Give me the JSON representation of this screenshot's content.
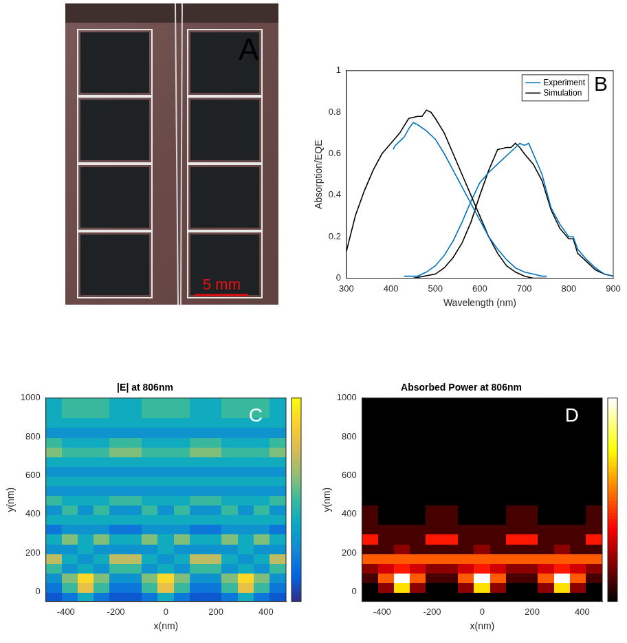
{
  "photo": {
    "letter": "A",
    "scale_bar": "5 mm"
  },
  "chart_data": [
    {
      "type": "line",
      "letter": "B",
      "xlabel": "Wavelength (nm)",
      "ylabel": "Absorption/EQE",
      "xlim": [
        300,
        900
      ],
      "xticks": [
        300,
        400,
        500,
        600,
        700,
        800,
        900
      ],
      "ylim": [
        0,
        1
      ],
      "yticks": [
        0,
        0.2,
        0.4,
        0.6,
        0.8,
        1
      ],
      "legend": "upper right",
      "grid": false,
      "series": [
        {
          "name": "Experiment",
          "color": "#0072bd",
          "x": [
            405,
            410,
            420,
            430,
            440,
            450,
            460,
            480,
            500,
            520,
            540,
            560,
            580,
            600,
            620,
            640,
            660,
            680,
            700,
            720,
            740,
            750
          ],
          "values": [
            0.62,
            0.64,
            0.66,
            0.68,
            0.72,
            0.75,
            0.74,
            0.71,
            0.67,
            0.6,
            0.52,
            0.44,
            0.36,
            0.28,
            0.2,
            0.14,
            0.09,
            0.05,
            0.03,
            0.02,
            0.01,
            0.01
          ]
        },
        {
          "name": "Simulation",
          "color": "#000000",
          "x": [
            300,
            320,
            340,
            360,
            380,
            400,
            420,
            440,
            460,
            470,
            480,
            490,
            500,
            520,
            540,
            560,
            580,
            600,
            620,
            640,
            660,
            680,
            700,
            720,
            750
          ],
          "values": [
            0.13,
            0.3,
            0.42,
            0.52,
            0.6,
            0.65,
            0.7,
            0.77,
            0.78,
            0.78,
            0.81,
            0.8,
            0.77,
            0.7,
            0.6,
            0.5,
            0.4,
            0.3,
            0.2,
            0.12,
            0.06,
            0.03,
            0.01,
            0,
            0
          ]
        },
        {
          "name": "Experiment",
          "color": "#0072bd",
          "x": [
            430,
            460,
            480,
            500,
            520,
            540,
            560,
            580,
            600,
            620,
            640,
            660,
            680,
            690,
            700,
            710,
            720,
            740,
            760,
            780,
            800,
            810,
            820,
            840,
            860,
            880,
            900
          ],
          "values": [
            0.01,
            0.01,
            0.03,
            0.06,
            0.11,
            0.18,
            0.27,
            0.37,
            0.46,
            0.51,
            0.55,
            0.59,
            0.63,
            0.65,
            0.64,
            0.65,
            0.6,
            0.5,
            0.34,
            0.26,
            0.2,
            0.2,
            0.14,
            0.09,
            0.05,
            0.02,
            0.01
          ]
        },
        {
          "name": "Simulation",
          "color": "#000000",
          "x": [
            450,
            500,
            520,
            540,
            560,
            580,
            600,
            620,
            640,
            660,
            670,
            680,
            690,
            700,
            720,
            740,
            760,
            780,
            800,
            810,
            820,
            840,
            860,
            880,
            900
          ],
          "values": [
            0,
            0.02,
            0.05,
            0.1,
            0.17,
            0.27,
            0.4,
            0.52,
            0.62,
            0.63,
            0.63,
            0.65,
            0.63,
            0.6,
            0.55,
            0.47,
            0.33,
            0.24,
            0.19,
            0.19,
            0.12,
            0.08,
            0.04,
            0.02,
            0.01
          ]
        }
      ]
    },
    {
      "type": "heatmap",
      "letter": "C",
      "title": "|E| at 806nm",
      "xlabel": "x(nm)",
      "ylabel": "y(nm)",
      "xlim": [
        -480,
        480
      ],
      "xticks": [
        -400,
        -200,
        0,
        200,
        400
      ],
      "ylim": [
        -50,
        1000
      ],
      "yticks": [
        0,
        200,
        400,
        600,
        800,
        1000
      ],
      "color": "parula",
      "zlim": [
        0,
        10
      ],
      "x": [
        -448,
        -384,
        -320,
        -256,
        -192,
        -128,
        -64,
        0,
        64,
        128,
        192,
        256,
        320,
        384,
        448
      ],
      "y": [
        -25,
        25,
        75,
        125,
        175,
        225,
        275,
        325,
        375,
        425,
        475,
        525,
        575,
        625,
        675,
        725,
        775,
        825,
        875,
        925,
        975
      ],
      "z": [
        [
          1,
          2,
          4,
          2,
          1,
          1,
          2,
          4,
          2,
          1,
          1,
          2,
          4,
          2,
          1
        ],
        [
          2,
          5,
          8,
          5,
          2,
          2,
          5,
          8,
          5,
          2,
          2,
          5,
          8,
          5,
          2
        ],
        [
          3,
          6,
          9,
          6,
          3,
          3,
          6,
          9,
          6,
          3,
          3,
          6,
          9,
          6,
          3
        ],
        [
          5,
          3,
          4,
          3,
          5,
          5,
          3,
          4,
          3,
          5,
          5,
          3,
          4,
          3,
          5
        ],
        [
          7,
          4,
          3,
          4,
          7,
          7,
          4,
          3,
          4,
          7,
          7,
          4,
          3,
          4,
          7
        ],
        [
          3,
          3,
          4,
          3,
          3,
          3,
          3,
          4,
          3,
          3,
          3,
          3,
          4,
          3,
          3
        ],
        [
          4,
          6,
          4,
          6,
          4,
          4,
          6,
          4,
          6,
          4,
          4,
          6,
          4,
          6,
          4
        ],
        [
          2,
          3,
          3,
          3,
          2,
          2,
          3,
          3,
          3,
          2,
          2,
          3,
          3,
          3,
          2
        ],
        [
          4,
          4,
          4,
          4,
          4,
          4,
          4,
          4,
          4,
          4,
          4,
          4,
          4,
          4,
          4
        ],
        [
          3,
          5,
          3,
          5,
          3,
          3,
          5,
          3,
          5,
          3,
          3,
          5,
          3,
          5,
          3
        ],
        [
          5,
          4,
          4,
          4,
          5,
          5,
          4,
          4,
          4,
          5,
          5,
          4,
          4,
          4,
          5
        ],
        [
          3,
          3,
          3,
          3,
          3,
          3,
          3,
          3,
          3,
          3,
          3,
          3,
          3,
          3,
          3
        ],
        [
          4,
          4,
          4,
          4,
          4,
          4,
          4,
          4,
          4,
          4,
          4,
          4,
          4,
          4,
          4
        ],
        [
          3,
          3,
          3,
          3,
          3,
          3,
          3,
          3,
          3,
          3,
          3,
          3,
          3,
          3,
          3
        ],
        [
          4,
          4,
          4,
          4,
          4,
          4,
          4,
          4,
          4,
          4,
          4,
          4,
          4,
          4,
          4
        ],
        [
          6,
          5,
          5,
          5,
          6,
          6,
          5,
          5,
          5,
          6,
          6,
          5,
          5,
          5,
          6
        ],
        [
          5,
          4,
          4,
          4,
          5,
          5,
          4,
          4,
          4,
          5,
          5,
          4,
          4,
          4,
          5
        ],
        [
          3,
          3,
          3,
          3,
          3,
          3,
          3,
          3,
          3,
          3,
          3,
          3,
          3,
          3,
          3
        ],
        [
          4,
          4,
          4,
          4,
          4,
          4,
          4,
          4,
          4,
          4,
          4,
          4,
          4,
          4,
          4
        ],
        [
          4,
          5,
          5,
          5,
          4,
          4,
          5,
          5,
          5,
          4,
          4,
          5,
          5,
          5,
          4
        ],
        [
          4,
          5,
          5,
          5,
          4,
          4,
          5,
          5,
          5,
          4,
          4,
          5,
          5,
          5,
          4
        ]
      ]
    },
    {
      "type": "heatmap",
      "letter": "D",
      "title": "Absorbed Power at 806nm",
      "xlabel": "x(nm)",
      "ylabel": "y(nm)",
      "xlim": [
        -480,
        480
      ],
      "xticks": [
        -400,
        -200,
        0,
        200,
        400
      ],
      "ylim": [
        -50,
        1000
      ],
      "yticks": [
        0,
        200,
        400,
        600,
        800,
        1000
      ],
      "color": "hot",
      "zlim": [
        0,
        10
      ],
      "x": [
        -448,
        -384,
        -320,
        -256,
        -192,
        -128,
        -64,
        0,
        64,
        128,
        192,
        256,
        320,
        384,
        448
      ],
      "y": [
        -25,
        25,
        75,
        125,
        175,
        225,
        275,
        325,
        375,
        425,
        475,
        525,
        575,
        625,
        675,
        725,
        775,
        825,
        875,
        925,
        975
      ],
      "z": [
        [
          0,
          0,
          0,
          0,
          0,
          0,
          0,
          0,
          0,
          0,
          0,
          0,
          0,
          0,
          0
        ],
        [
          0,
          2,
          7,
          2,
          0,
          0,
          2,
          7,
          2,
          0,
          0,
          2,
          7,
          2,
          0
        ],
        [
          1,
          5,
          10,
          5,
          1,
          1,
          5,
          10,
          5,
          1,
          1,
          5,
          10,
          5,
          1
        ],
        [
          2,
          3,
          4,
          3,
          2,
          2,
          3,
          4,
          3,
          2,
          2,
          3,
          4,
          3,
          2
        ],
        [
          5,
          5,
          5,
          5,
          5,
          5,
          5,
          5,
          5,
          5,
          5,
          5,
          5,
          5,
          5
        ],
        [
          1,
          1,
          2,
          1,
          1,
          1,
          1,
          2,
          1,
          1,
          1,
          1,
          2,
          1,
          1
        ],
        [
          4,
          1,
          1,
          1,
          4,
          4,
          1,
          1,
          1,
          4,
          4,
          1,
          1,
          1,
          4
        ],
        [
          1,
          1,
          1,
          1,
          1,
          1,
          1,
          1,
          1,
          1,
          1,
          1,
          1,
          1,
          1
        ],
        [
          1,
          0,
          0,
          0,
          1,
          1,
          0,
          0,
          0,
          1,
          1,
          0,
          0,
          0,
          1
        ],
        [
          1,
          0,
          0,
          0,
          1,
          1,
          0,
          0,
          0,
          1,
          1,
          0,
          0,
          0,
          1
        ],
        [
          0,
          0,
          0,
          0,
          0,
          0,
          0,
          0,
          0,
          0,
          0,
          0,
          0,
          0,
          0
        ],
        [
          0,
          0,
          0,
          0,
          0,
          0,
          0,
          0,
          0,
          0,
          0,
          0,
          0,
          0,
          0
        ],
        [
          0,
          0,
          0,
          0,
          0,
          0,
          0,
          0,
          0,
          0,
          0,
          0,
          0,
          0,
          0
        ],
        [
          0,
          0,
          0,
          0,
          0,
          0,
          0,
          0,
          0,
          0,
          0,
          0,
          0,
          0,
          0
        ],
        [
          0,
          0,
          0,
          0,
          0,
          0,
          0,
          0,
          0,
          0,
          0,
          0,
          0,
          0,
          0
        ],
        [
          0,
          0,
          0,
          0,
          0,
          0,
          0,
          0,
          0,
          0,
          0,
          0,
          0,
          0,
          0
        ],
        [
          0,
          0,
          0,
          0,
          0,
          0,
          0,
          0,
          0,
          0,
          0,
          0,
          0,
          0,
          0
        ],
        [
          0,
          0,
          0,
          0,
          0,
          0,
          0,
          0,
          0,
          0,
          0,
          0,
          0,
          0,
          0
        ],
        [
          0,
          0,
          0,
          0,
          0,
          0,
          0,
          0,
          0,
          0,
          0,
          0,
          0,
          0,
          0
        ],
        [
          0,
          0,
          0,
          0,
          0,
          0,
          0,
          0,
          0,
          0,
          0,
          0,
          0,
          0,
          0
        ],
        [
          0,
          0,
          0,
          0,
          0,
          0,
          0,
          0,
          0,
          0,
          0,
          0,
          0,
          0,
          0
        ]
      ]
    }
  ]
}
